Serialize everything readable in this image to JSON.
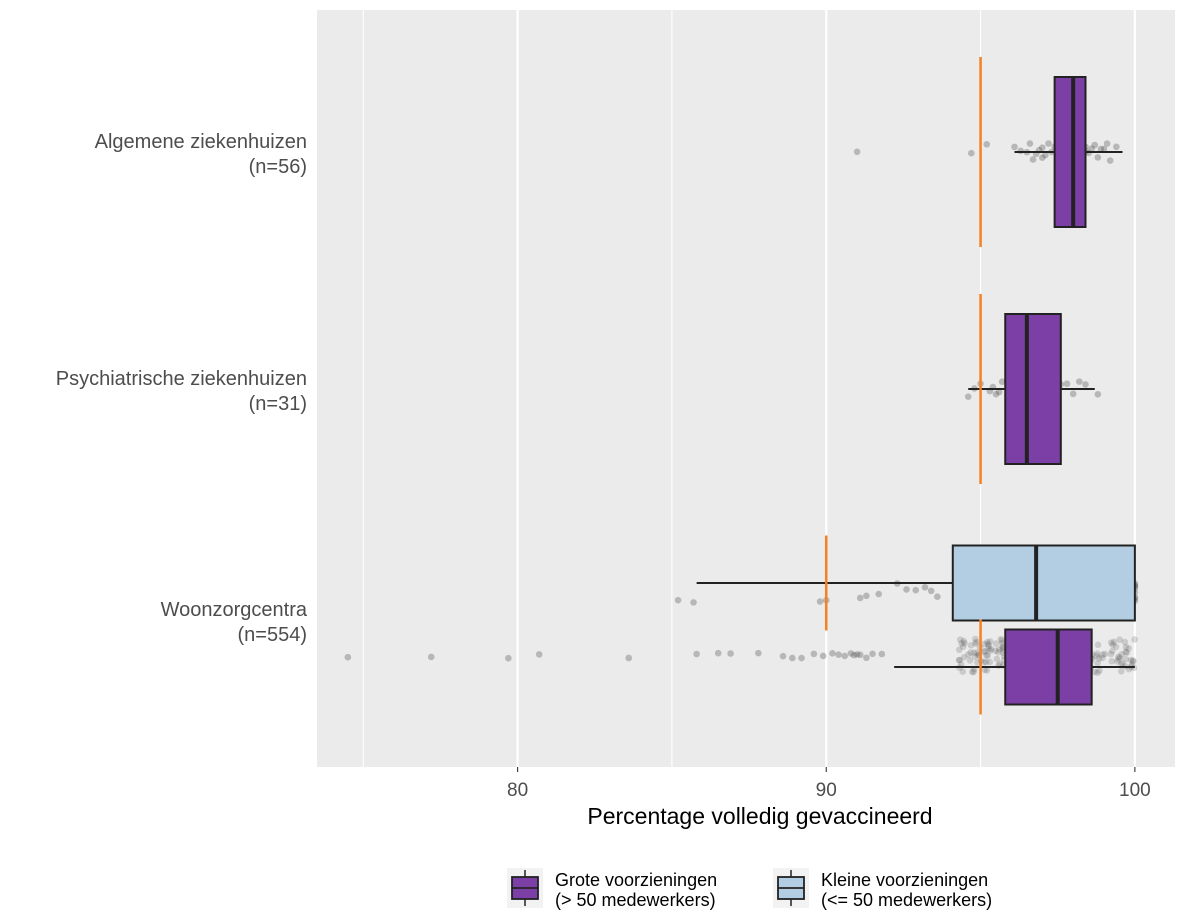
{
  "chart_data": {
    "type": "boxplot",
    "orientation": "horizontal",
    "xlabel": "Percentage volledig gevaccineerd",
    "x_ticks": [
      80,
      90,
      100
    ],
    "x_tick_labels": [
      "80",
      "90",
      "100"
    ],
    "xlim": [
      73.5,
      101.3
    ],
    "grid": true,
    "legend_position": "bottom",
    "series": [
      {
        "key": "groot",
        "name": "Grote voorzieningen",
        "name_line2": "(> 50 medewerkers)",
        "color": "#7B3FA5"
      },
      {
        "key": "klein",
        "name": "Kleine voorzieningen",
        "name_line2": "(<= 50 medewerkers)",
        "color": "#B3CDE3"
      }
    ],
    "categories": [
      {
        "label": "Algemene ziekenhuizen",
        "n_label": "(n=56)",
        "boxes": [
          {
            "series": "groot",
            "whisker_low": 96.1,
            "q1": 97.4,
            "median": 98.0,
            "q3": 98.4,
            "whisker_high": 99.6,
            "target": 95
          }
        ],
        "points": [
          91.0,
          94.7,
          95.2,
          96.1,
          96.3,
          96.5,
          96.6,
          96.7,
          96.8,
          96.9,
          97.0,
          97.0,
          97.1,
          97.2,
          97.3,
          97.4,
          97.5,
          97.5,
          97.6,
          97.7,
          97.7,
          97.8,
          97.8,
          97.9,
          97.9,
          98.0,
          98.0,
          98.0,
          98.1,
          98.1,
          98.2,
          98.2,
          98.3,
          98.3,
          98.4,
          98.4,
          98.5,
          98.6,
          98.7,
          98.8,
          98.9,
          99.0,
          99.1,
          99.2,
          99.4
        ]
      },
      {
        "label": "Psychiatrische ziekenhuizen",
        "n_label": "(n=31)",
        "boxes": [
          {
            "series": "groot",
            "whisker_low": 94.6,
            "q1": 95.8,
            "median": 96.5,
            "q3": 97.6,
            "whisker_high": 98.7,
            "target": 95
          }
        ],
        "points": [
          94.6,
          94.8,
          95.0,
          95.3,
          95.4,
          95.5,
          95.6,
          95.7,
          95.9,
          96.0,
          96.1,
          96.2,
          96.3,
          96.4,
          96.5,
          96.6,
          96.7,
          96.8,
          96.9,
          97.0,
          97.1,
          97.2,
          97.4,
          97.6,
          97.8,
          98.0,
          98.2,
          98.4,
          98.8
        ]
      },
      {
        "label": "Woonzorgcentra",
        "n_label": "(n=554)",
        "boxes": [
          {
            "series": "klein",
            "whisker_low": 85.8,
            "q1": 94.1,
            "median": 96.8,
            "q3": 100,
            "whisker_high": 100,
            "target": 90
          },
          {
            "series": "groot",
            "whisker_low": 92.2,
            "q1": 95.8,
            "median": 97.5,
            "q3": 98.6,
            "whisker_high": 100,
            "target": 95
          }
        ],
        "points_klein": [
          85.2,
          85.7,
          89.8,
          90.0,
          91.1,
          91.3,
          91.7,
          92.3,
          92.6,
          92.9,
          93.2,
          93.4,
          93.6,
          94.3,
          94.6,
          94.9,
          95.2,
          95.6,
          95.9,
          96.4,
          96.9,
          97.2,
          97.7,
          97.9,
          98.1,
          100,
          100,
          100,
          100,
          100,
          100,
          100,
          100
        ],
        "points_groot_outliers": [
          74.5,
          77.2,
          79.7,
          80.7,
          83.6,
          85.8,
          86.5,
          86.9,
          87.8,
          88.6,
          88.9,
          89.2,
          89.6,
          89.9,
          90.2,
          90.4,
          90.6,
          90.8,
          90.9,
          91.0,
          91.1,
          91.3,
          91.5,
          91.8
        ]
      }
    ]
  }
}
